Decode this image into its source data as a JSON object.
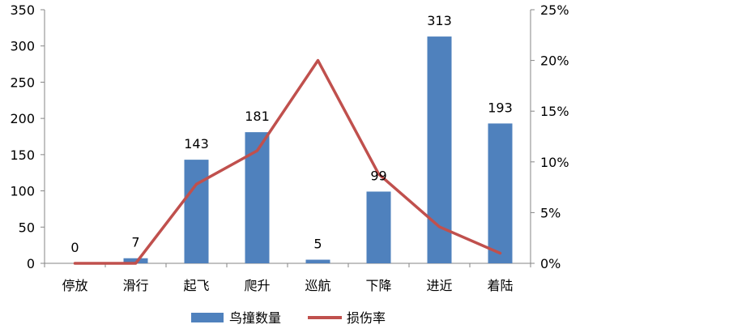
{
  "chart_data": {
    "type": "bar",
    "categories": [
      "停放",
      "滑行",
      "起飞",
      "爬升",
      "巡航",
      "下降",
      "进近",
      "着陆"
    ],
    "series": [
      {
        "name": "鸟撞数量",
        "type": "bar",
        "axis": "left",
        "values": [
          0,
          7,
          143,
          181,
          5,
          99,
          313,
          193
        ],
        "data_labels": [
          "0",
          "7",
          "143",
          "181",
          "5",
          "99",
          "313",
          "193"
        ]
      },
      {
        "name": "损伤率",
        "type": "line",
        "axis": "right",
        "values": [
          0.0,
          0.0,
          0.078,
          0.111,
          0.2,
          0.088,
          0.036,
          0.01
        ]
      }
    ],
    "y_left": {
      "lim": [
        0,
        350
      ],
      "ticks": [
        "0",
        "50",
        "100",
        "150",
        "200",
        "250",
        "300",
        "350"
      ]
    },
    "y_right": {
      "lim": [
        0,
        0.25
      ],
      "ticks": [
        "0%",
        "5%",
        "10%",
        "15%",
        "20%",
        "25%"
      ]
    },
    "grid": false,
    "legend_position": "bottom",
    "colors": {
      "bar": "#4f81bd",
      "line": "#c0504d",
      "axis": "#868686"
    }
  }
}
